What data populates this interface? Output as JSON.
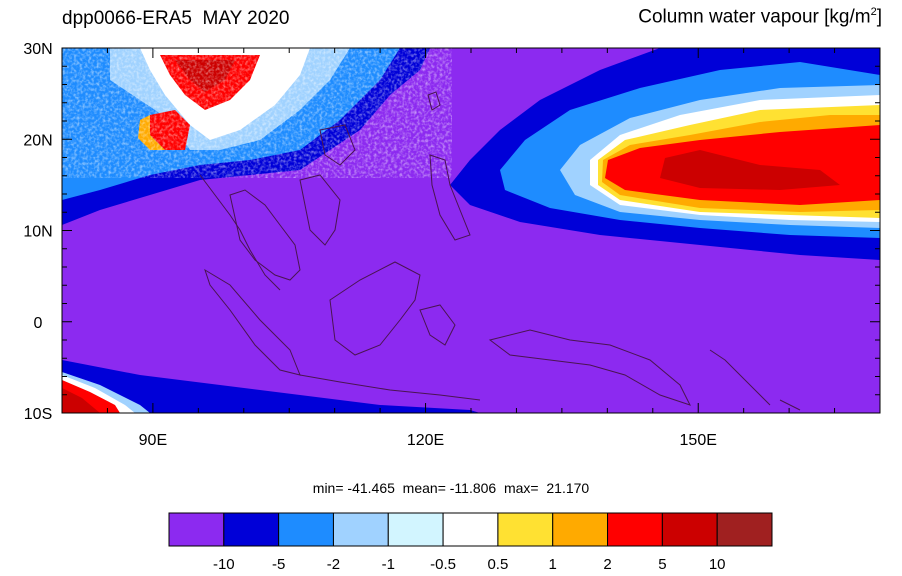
{
  "header": {
    "title_left": "dpp0066-ERA5  MAY 2020",
    "title_right_prefix": "Column water vapour [kg/m",
    "title_right_sup": "2",
    "title_right_suffix": "]"
  },
  "map": {
    "lon_range": [
      80,
      170
    ],
    "lat_range": [
      -10,
      30
    ],
    "x_ticks": [
      {
        "value": 90,
        "label": "90E"
      },
      {
        "value": 120,
        "label": "120E"
      },
      {
        "value": 150,
        "label": "150E"
      }
    ],
    "y_ticks": [
      {
        "value": 30,
        "label": "30N"
      },
      {
        "value": 20,
        "label": "20N"
      },
      {
        "value": 10,
        "label": "10N"
      },
      {
        "value": 0,
        "label": "0"
      },
      {
        "value": -10,
        "label": "10S"
      }
    ],
    "background_class_color": "#8c2af0"
  },
  "stats": {
    "text": "min= -41.465  mean= -11.806  max=  21.170"
  },
  "colorbar": {
    "colors": [
      "#8c2af0",
      "#0000d8",
      "#1e8cff",
      "#a0d2ff",
      "#d2f5ff",
      "#ffffff",
      "#ffe132",
      "#ffaa00",
      "#ff0000",
      "#cc0000",
      "#a02020"
    ],
    "labels": [
      "-10",
      "-5",
      "-2",
      "-1",
      "-0.5",
      "0.5",
      "1",
      "2",
      "5",
      "10"
    ]
  }
}
